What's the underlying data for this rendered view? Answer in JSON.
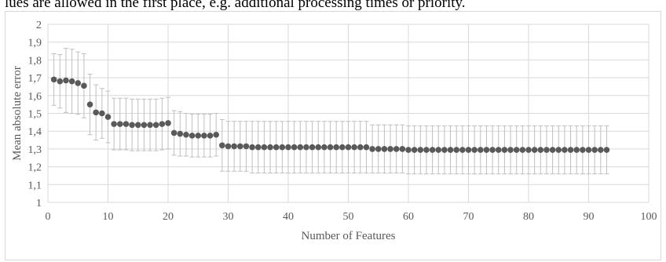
{
  "caption_text": "lues are allowed in the first place, e.g. additional processing times or priority.",
  "chart_data": {
    "type": "scatter",
    "title": "",
    "xlabel": "Number of Features",
    "ylabel": "Mean absolute error",
    "xlim": [
      0,
      100
    ],
    "ylim": [
      1,
      2
    ],
    "x_ticks": [
      "0",
      "10",
      "20",
      "30",
      "40",
      "50",
      "60",
      "70",
      "80",
      "90",
      "100"
    ],
    "y_ticks": [
      "1",
      "1,1",
      "1,2",
      "1,3",
      "1,4",
      "1,5",
      "1,6",
      "1,7",
      "1,8",
      "1,9",
      "2"
    ],
    "grid": true,
    "legend": "none",
    "marker_color": "#595959",
    "error_bar_color": "#bfbfbf",
    "gridline_color": "#d9d9d9",
    "x": [
      1,
      2,
      3,
      4,
      5,
      6,
      7,
      8,
      9,
      10,
      11,
      12,
      13,
      14,
      15,
      16,
      17,
      18,
      19,
      20,
      21,
      22,
      23,
      24,
      25,
      26,
      27,
      28,
      29,
      30,
      31,
      32,
      33,
      34,
      35,
      36,
      37,
      38,
      39,
      40,
      41,
      42,
      43,
      44,
      45,
      46,
      47,
      48,
      49,
      50,
      51,
      52,
      53,
      54,
      55,
      56,
      57,
      58,
      59,
      60,
      61,
      62,
      63,
      64,
      65,
      66,
      67,
      68,
      69,
      70,
      71,
      72,
      73,
      74,
      75,
      76,
      77,
      78,
      79,
      80,
      81,
      82,
      83,
      84,
      85,
      86,
      87,
      88,
      89,
      90,
      91,
      92,
      93
    ],
    "values": [
      1.69,
      1.68,
      1.685,
      1.68,
      1.67,
      1.655,
      1.55,
      1.505,
      1.5,
      1.48,
      1.44,
      1.44,
      1.44,
      1.435,
      1.435,
      1.435,
      1.435,
      1.435,
      1.44,
      1.445,
      1.39,
      1.385,
      1.38,
      1.375,
      1.375,
      1.375,
      1.375,
      1.38,
      1.32,
      1.315,
      1.315,
      1.315,
      1.315,
      1.31,
      1.31,
      1.31,
      1.31,
      1.31,
      1.31,
      1.31,
      1.31,
      1.31,
      1.31,
      1.31,
      1.31,
      1.31,
      1.31,
      1.31,
      1.31,
      1.31,
      1.31,
      1.31,
      1.31,
      1.3,
      1.3,
      1.3,
      1.3,
      1.3,
      1.3,
      1.295,
      1.295,
      1.295,
      1.295,
      1.295,
      1.295,
      1.295,
      1.295,
      1.295,
      1.295,
      1.295,
      1.295,
      1.295,
      1.295,
      1.295,
      1.295,
      1.295,
      1.295,
      1.295,
      1.295,
      1.295,
      1.295,
      1.295,
      1.295,
      1.295,
      1.295,
      1.295,
      1.295,
      1.295,
      1.295,
      1.295,
      1.295,
      1.295,
      1.295
    ],
    "error": [
      0.145,
      0.15,
      0.18,
      0.18,
      0.175,
      0.18,
      0.17,
      0.155,
      0.14,
      0.145,
      0.145,
      0.145,
      0.145,
      0.145,
      0.145,
      0.145,
      0.145,
      0.145,
      0.145,
      0.145,
      0.125,
      0.125,
      0.12,
      0.12,
      0.12,
      0.12,
      0.12,
      0.12,
      0.145,
      0.14,
      0.14,
      0.14,
      0.14,
      0.145,
      0.145,
      0.145,
      0.145,
      0.145,
      0.145,
      0.145,
      0.145,
      0.145,
      0.145,
      0.145,
      0.145,
      0.145,
      0.145,
      0.145,
      0.145,
      0.145,
      0.145,
      0.145,
      0.145,
      0.135,
      0.135,
      0.135,
      0.135,
      0.135,
      0.135,
      0.135,
      0.135,
      0.135,
      0.135,
      0.135,
      0.135,
      0.135,
      0.135,
      0.135,
      0.135,
      0.135,
      0.135,
      0.135,
      0.135,
      0.135,
      0.135,
      0.135,
      0.135,
      0.135,
      0.135,
      0.135,
      0.135,
      0.135,
      0.135,
      0.135,
      0.135,
      0.135,
      0.135,
      0.135,
      0.135,
      0.135,
      0.135,
      0.135,
      0.135
    ]
  }
}
